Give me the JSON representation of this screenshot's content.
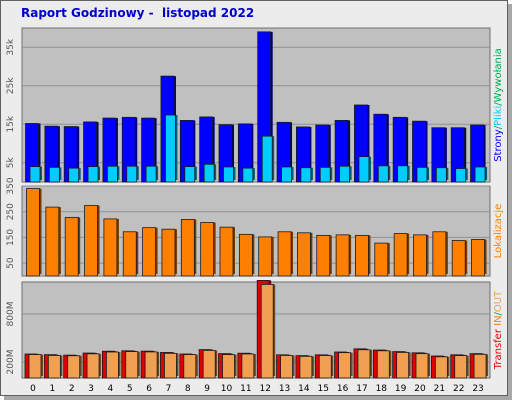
{
  "title": "Raport Godzinowy -  listopad 2022",
  "colors": {
    "strony": "#0000ff",
    "pliki": "#00ccff",
    "wywolania": "#00aa55",
    "lokalizacje": "#ff8000",
    "transfer": "#e00000",
    "in": "#ff8000",
    "out": "#f0a050",
    "panel_bg": "#c0c0c0",
    "grid": "#909090",
    "frame_bg": "#ececec"
  },
  "chart_data": [
    {
      "type": "bar",
      "categories": [
        "0",
        "1",
        "2",
        "3",
        "4",
        "5",
        "6",
        "7",
        "8",
        "9",
        "10",
        "11",
        "12",
        "13",
        "14",
        "15",
        "16",
        "17",
        "18",
        "19",
        "20",
        "21",
        "22",
        "23"
      ],
      "ylim": [
        0,
        40000
      ],
      "yticks": [
        5000,
        15000,
        25000,
        35000
      ],
      "ytick_labels": [
        "5k",
        "15k",
        "25k",
        "35k"
      ],
      "side_label_parts": [
        {
          "text": "Strony",
          "color_key": "strony"
        },
        {
          "text": "/",
          "color_key": "wywolania"
        },
        {
          "text": "Pliki",
          "color_key": "pliki"
        },
        {
          "text": "/",
          "color_key": "wywolania"
        },
        {
          "text": "Wywołania",
          "color_key": "wywolania"
        }
      ],
      "series": [
        {
          "color_key": "strony",
          "values": [
            15200,
            14500,
            14400,
            15600,
            16600,
            16800,
            16600,
            27500,
            16000,
            16900,
            14900,
            15100,
            39000,
            15500,
            14300,
            14800,
            16000,
            20000,
            17600,
            16800,
            15800,
            14100,
            14100,
            14800
          ]
        },
        {
          "color_key": "pliki",
          "values": [
            4000,
            3800,
            3600,
            4000,
            4100,
            4100,
            4100,
            17400,
            4000,
            4600,
            3900,
            3600,
            11900,
            3900,
            3700,
            3800,
            4100,
            6600,
            4200,
            4200,
            3800,
            3700,
            3500,
            3900
          ]
        }
      ]
    },
    {
      "type": "bar",
      "categories": [
        "0",
        "1",
        "2",
        "3",
        "4",
        "5",
        "6",
        "7",
        "8",
        "9",
        "10",
        "11",
        "12",
        "13",
        "14",
        "15",
        "16",
        "17",
        "18",
        "19",
        "20",
        "21",
        "22",
        "23"
      ],
      "ylim": [
        0,
        350
      ],
      "yticks": [
        50,
        150,
        250,
        350
      ],
      "ytick_labels": [
        "50",
        "150",
        "250",
        "350"
      ],
      "side_label_parts": [
        {
          "text": "Lokalizacje",
          "color_key": "lokalizacje"
        }
      ],
      "series": [
        {
          "color_key": "lokalizacje",
          "values": [
            340,
            268,
            228,
            274,
            222,
            172,
            188,
            182,
            220,
            208,
            190,
            162,
            152,
            172,
            168,
            158,
            160,
            158,
            128,
            165,
            160,
            172,
            138,
            142
          ]
        }
      ]
    },
    {
      "type": "bar",
      "categories": [
        "0",
        "1",
        "2",
        "3",
        "4",
        "5",
        "6",
        "7",
        "8",
        "9",
        "10",
        "11",
        "12",
        "13",
        "14",
        "15",
        "16",
        "17",
        "18",
        "19",
        "20",
        "21",
        "22",
        "23"
      ],
      "ylim": [
        0,
        1200
      ],
      "yticks": [
        200,
        800
      ],
      "ytick_labels": [
        "200M",
        "800M"
      ],
      "side_label_parts": [
        {
          "text": "Transfer",
          "color_key": "transfer"
        },
        {
          "text": " IN",
          "color_key": "in"
        },
        {
          "text": "/",
          "color_key": "wywolania"
        },
        {
          "text": "OUT",
          "color_key": "out"
        }
      ],
      "series": [
        {
          "color_key": "transfer",
          "values": [
            300,
            292,
            286,
            312,
            335,
            340,
            336,
            320,
            300,
            355,
            305,
            310,
            1220,
            290,
            280,
            290,
            325,
            365,
            350,
            330,
            315,
            275,
            290,
            305
          ]
        },
        {
          "color_key": "out",
          "values": [
            293,
            282,
            278,
            302,
            325,
            330,
            326,
            308,
            293,
            345,
            292,
            300,
            1170,
            282,
            271,
            281,
            317,
            353,
            340,
            320,
            304,
            265,
            280,
            296
          ]
        }
      ]
    }
  ]
}
